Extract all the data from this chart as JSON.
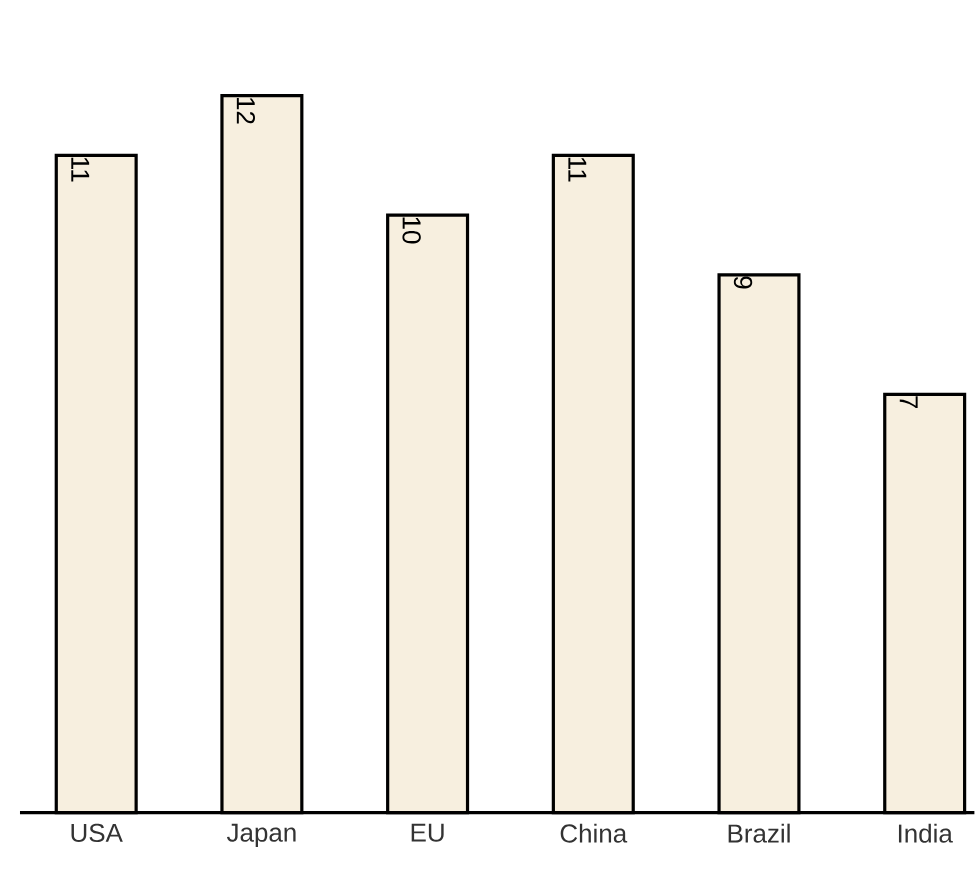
{
  "chart_data": {
    "type": "bar",
    "categories": [
      "USA",
      "Japan",
      "EU",
      "China",
      "Brazil",
      "India"
    ],
    "values": [
      11,
      12,
      10,
      11,
      9,
      7
    ],
    "color": "#f7efdf",
    "tick_labels": "x",
    "data_labels": true
  }
}
